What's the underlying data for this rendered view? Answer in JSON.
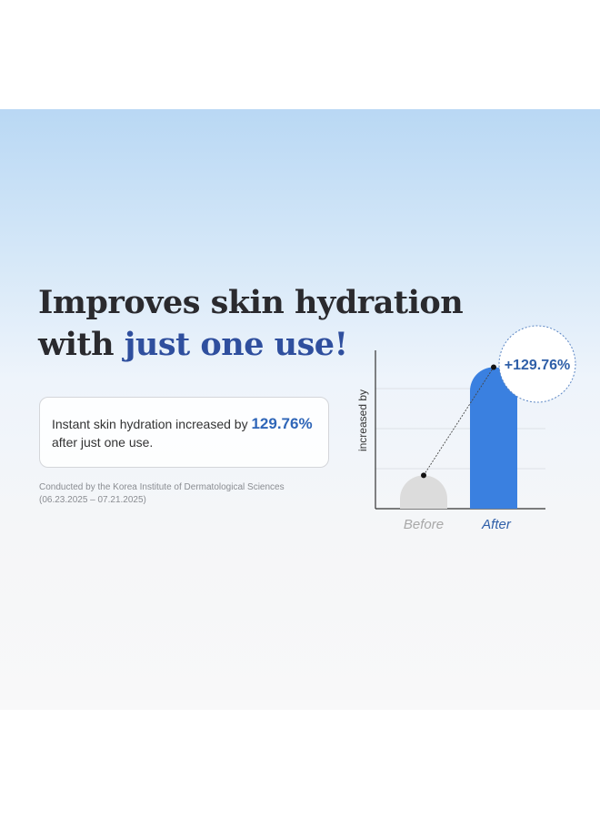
{
  "headline": {
    "line1": "Improves skin hydration",
    "line2_prefix": "with ",
    "line2_highlight": "just one use!"
  },
  "card": {
    "text": "Instant skin hydration increased by ",
    "value": "129.76%",
    "text2": "after just one use."
  },
  "note": {
    "line1": "Conducted by the Korea Institute of Dermatological Sciences",
    "line2": "(06.23.2025 – 07.21.2025)"
  },
  "chart_data": {
    "type": "bar",
    "categories": [
      "Before",
      "After"
    ],
    "values": [
      100,
      229.76
    ],
    "ylabel": "increased by",
    "annotation": "+129.76%",
    "ylim": [
      60,
      250
    ],
    "grid": true,
    "colors": {
      "before": "#dcdcdc",
      "after": "#3a80e0",
      "annotation": "#2f5fa8"
    }
  }
}
